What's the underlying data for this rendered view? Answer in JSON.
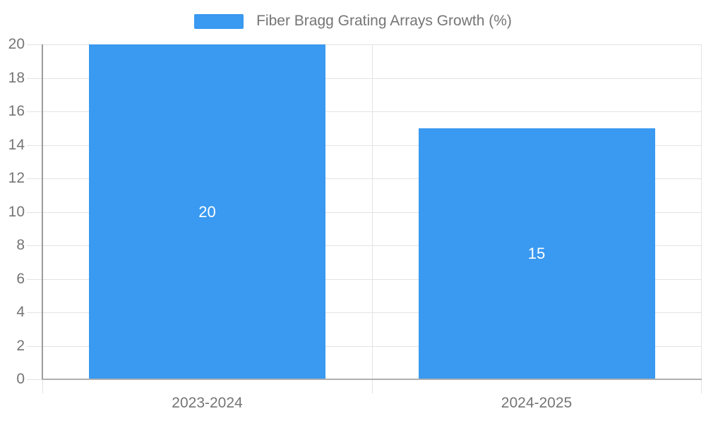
{
  "chart_data": {
    "type": "bar",
    "title": "",
    "legend": {
      "label": "Fiber Bragg Grating Arrays Growth (%)",
      "position": "top-center"
    },
    "categories": [
      "2023-2024",
      "2024-2025"
    ],
    "values": [
      20,
      15
    ],
    "value_labels": [
      "20",
      "15"
    ],
    "xlabel": "",
    "ylabel": "",
    "ylim": [
      0,
      20
    ],
    "ytick_step": 2,
    "ytick_labels": [
      "0",
      "2",
      "4",
      "6",
      "8",
      "10",
      "12",
      "14",
      "16",
      "18",
      "20"
    ],
    "grid": true,
    "legend_position": "top-center",
    "colors": {
      "bar": "#3A99F0",
      "grid": "#e3e3e3",
      "y_axis_line": "#9b9b9b",
      "x_axis_line": "#b0b0b0",
      "tick_mark": "#e3e3e3",
      "axis_text": "#757575",
      "bar_label_text": "#ffffff",
      "background": "#ffffff"
    }
  }
}
